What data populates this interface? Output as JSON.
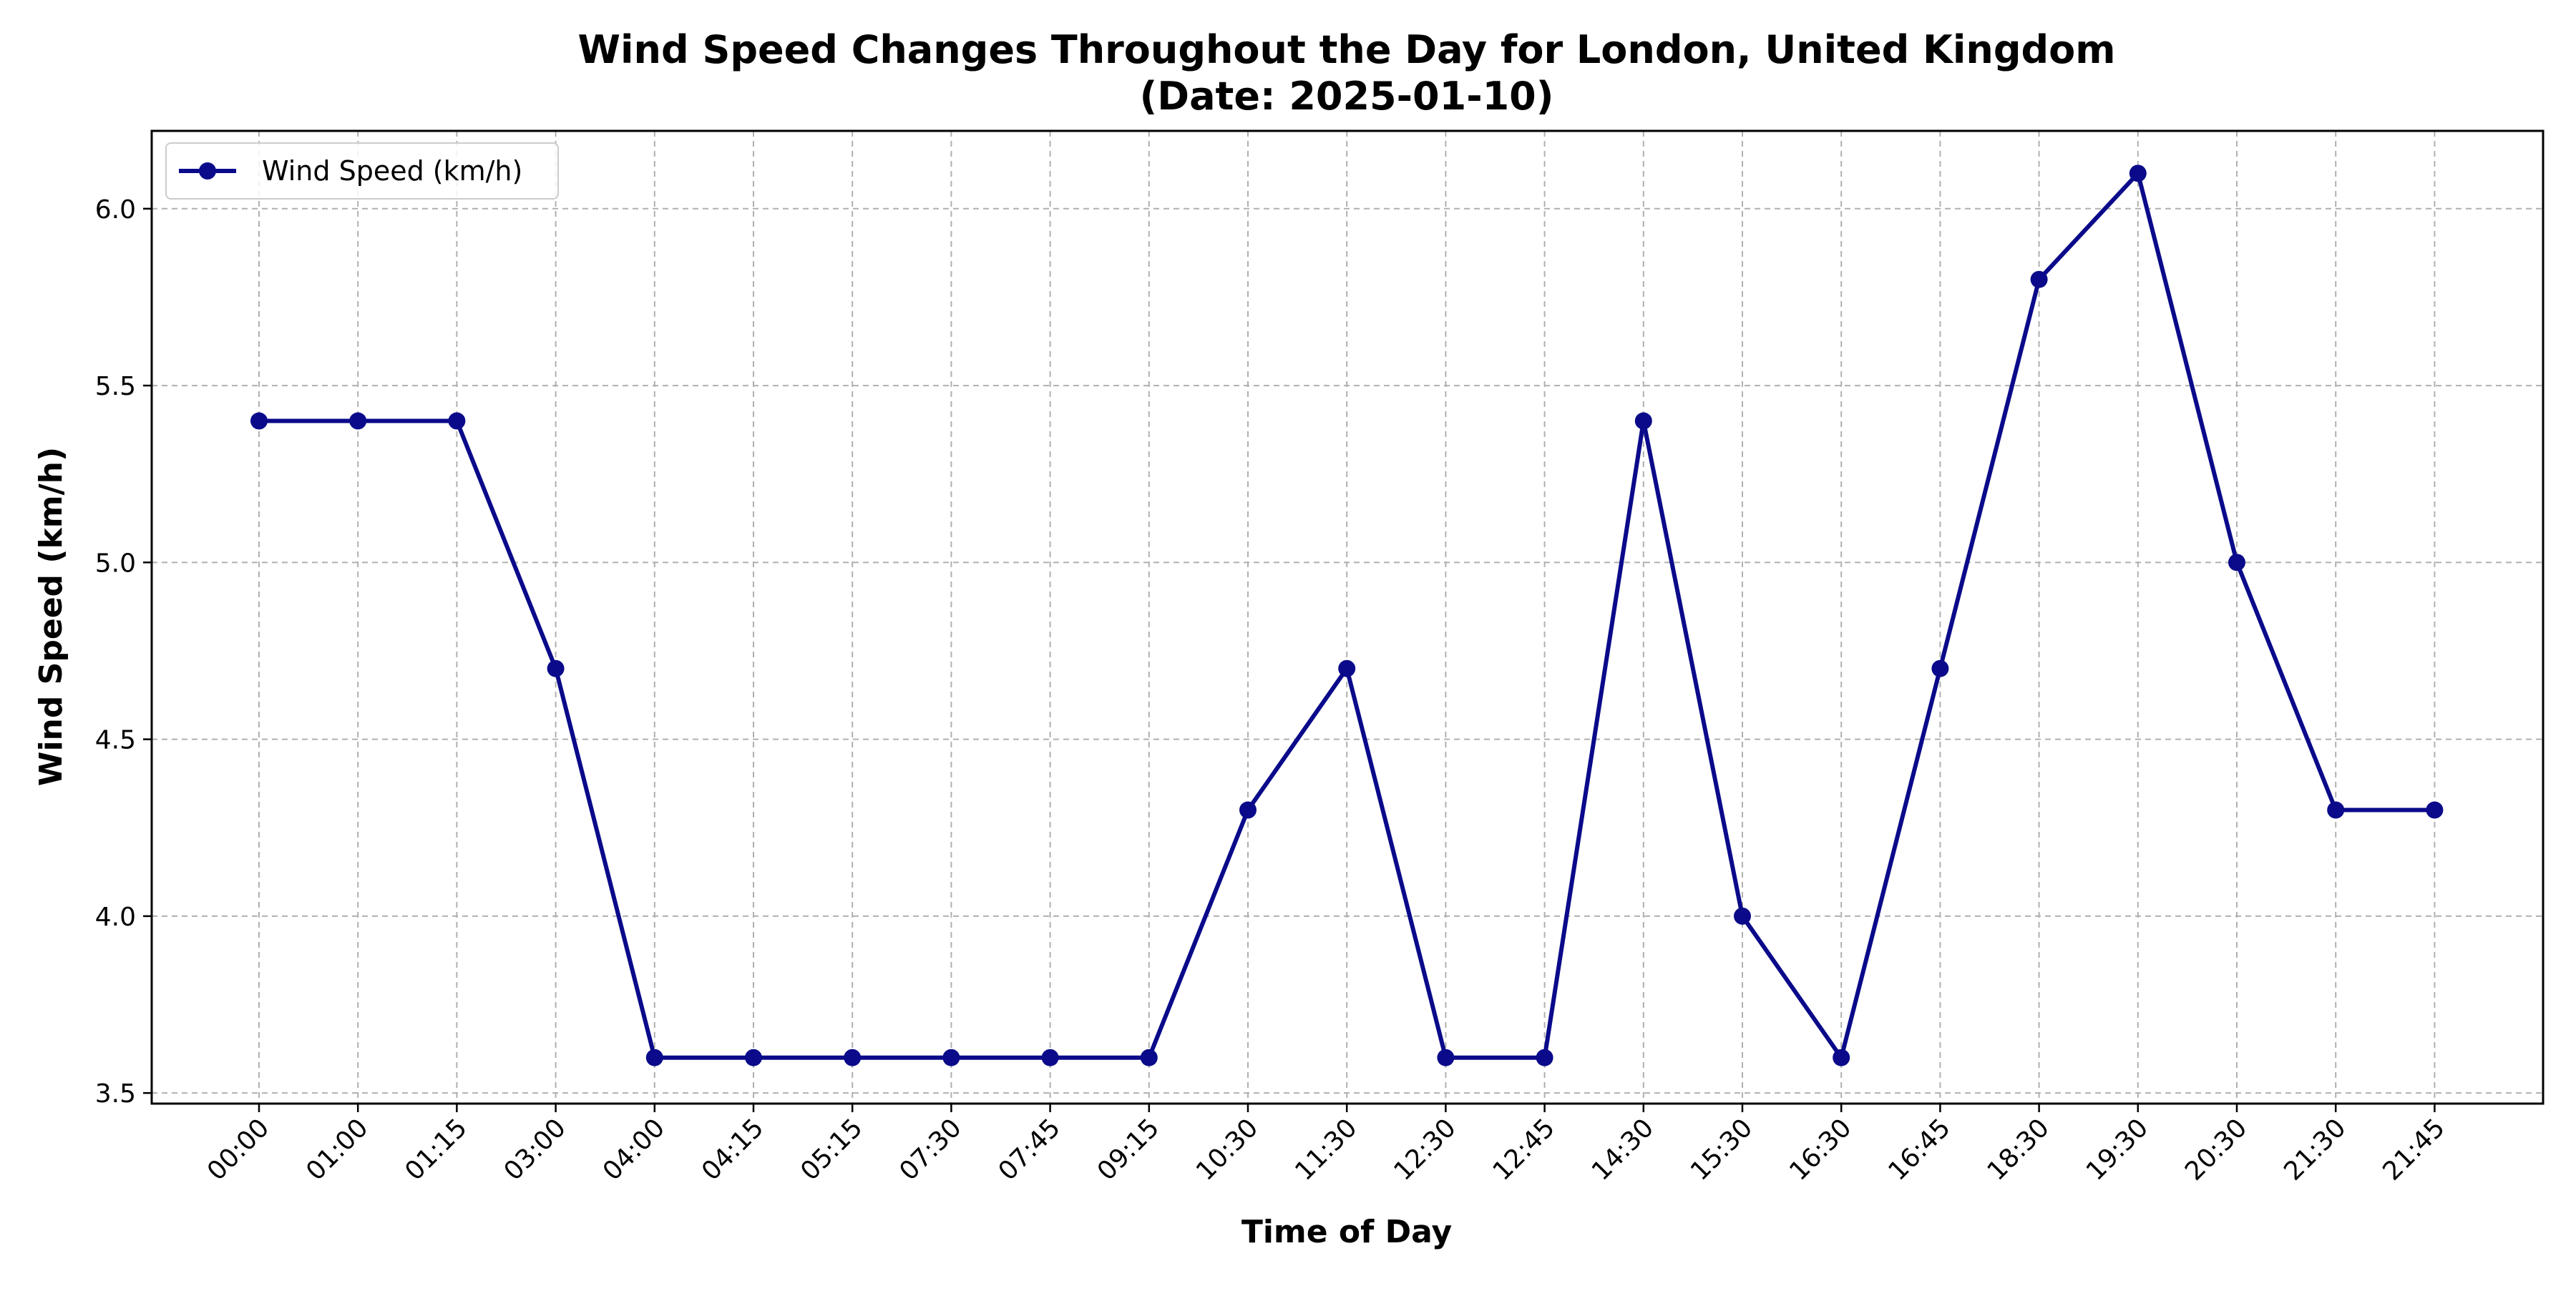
{
  "chart_data": {
    "type": "line",
    "title": "Wind Speed Changes Throughout the Day for London, United Kingdom",
    "subtitle": "(Date: 2025-01-10)",
    "xlabel": "Time of Day",
    "ylabel": "Wind Speed (km/h)",
    "categories": [
      "00:00",
      "01:00",
      "01:15",
      "03:00",
      "04:00",
      "04:15",
      "05:15",
      "07:30",
      "07:45",
      "09:15",
      "10:30",
      "11:30",
      "12:30",
      "12:45",
      "14:30",
      "15:30",
      "16:30",
      "16:45",
      "18:30",
      "19:30",
      "20:30",
      "21:30",
      "21:45"
    ],
    "series": [
      {
        "name": "Wind Speed (km/h)",
        "color": "#0a0a8a",
        "values": [
          5.4,
          5.4,
          5.4,
          4.7,
          3.6,
          3.6,
          3.6,
          3.6,
          3.6,
          3.6,
          4.3,
          4.7,
          3.6,
          3.6,
          5.4,
          4.0,
          3.6,
          4.7,
          5.8,
          6.1,
          5.0,
          4.3,
          4.3
        ]
      }
    ],
    "ylim": [
      3.47,
      6.22
    ],
    "yticks": [
      "3.5",
      "4.0",
      "4.5",
      "5.0",
      "5.5",
      "6.0"
    ],
    "grid": true,
    "legend_position": "top-left"
  }
}
